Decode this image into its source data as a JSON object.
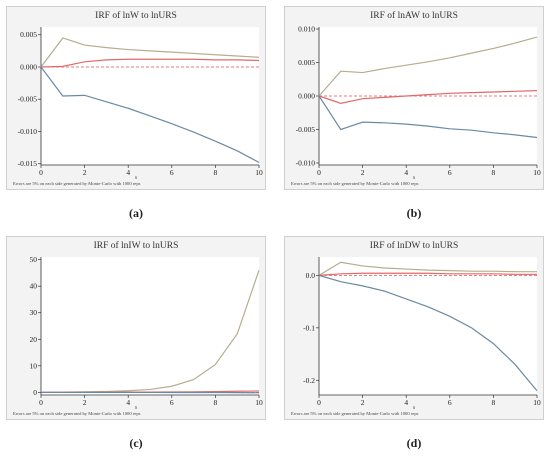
{
  "note": "Errors are 5% on each side generated by Monte-Carlo with 1000 reps",
  "xlabel": "s",
  "colors": {
    "upper": "#b4ad8e",
    "irf": "#e06a6a",
    "lower": "#6b8aa2",
    "zero": "#e05050",
    "bg": "#f3f3f3"
  },
  "captions": [
    "(a)",
    "(b)",
    "(c)",
    "(d)"
  ],
  "chart_data": [
    {
      "type": "line",
      "title": "IRF of lnW to lnURS",
      "x": [
        0,
        1,
        2,
        3,
        4,
        5,
        6,
        7,
        8,
        9,
        10
      ],
      "xticks": [
        0,
        2,
        4,
        6,
        8,
        10
      ],
      "yticks": [
        0.005,
        0.0,
        -0.005,
        -0.01,
        -0.015
      ],
      "ytick_labels": [
        "0.005",
        "0.000",
        "-0.005",
        "-0.010",
        "-0.015"
      ],
      "ylim": [
        -0.0152,
        0.0062
      ],
      "series": [
        {
          "role": "upper",
          "values": [
            0,
            0.0045,
            0.0034,
            0.003,
            0.0027,
            0.0025,
            0.0023,
            0.0021,
            0.0019,
            0.0017,
            0.0015
          ]
        },
        {
          "role": "irf",
          "values": [
            0,
            0.0001,
            0.0008,
            0.0011,
            0.0012,
            0.0012,
            0.0012,
            0.0012,
            0.0011,
            0.0011,
            0.001
          ]
        },
        {
          "role": "lower",
          "values": [
            0,
            -0.0045,
            -0.0044,
            -0.0054,
            -0.0064,
            -0.0076,
            -0.0088,
            -0.0101,
            -0.0115,
            -0.013,
            -0.0148
          ]
        }
      ]
    },
    {
      "type": "line",
      "title": "IRF of lnAW to lnURS",
      "x": [
        0,
        1,
        2,
        3,
        4,
        5,
        6,
        7,
        8,
        9,
        10
      ],
      "xticks": [
        0,
        2,
        4,
        6,
        8,
        10
      ],
      "yticks": [
        0.01,
        0.005,
        0.0,
        -0.005,
        -0.01
      ],
      "ytick_labels": [
        "0.010",
        "0.005",
        "0.000",
        "-0.005",
        "-0.010"
      ],
      "ylim": [
        -0.0103,
        0.0103
      ],
      "series": [
        {
          "role": "upper",
          "values": [
            0,
            0.0037,
            0.0035,
            0.0041,
            0.0046,
            0.0051,
            0.0057,
            0.0064,
            0.0071,
            0.0079,
            0.0088
          ]
        },
        {
          "role": "irf",
          "values": [
            0,
            -0.0011,
            -0.0004,
            -0.0002,
            0.0,
            0.0002,
            0.0004,
            0.0005,
            0.0006,
            0.0007,
            0.0008
          ]
        },
        {
          "role": "lower",
          "values": [
            0,
            -0.005,
            -0.0039,
            -0.004,
            -0.0042,
            -0.0045,
            -0.0049,
            -0.0051,
            -0.0055,
            -0.0058,
            -0.0062
          ]
        }
      ]
    },
    {
      "type": "line",
      "title": "IRF of lnIW to lnURS",
      "x": [
        0,
        1,
        2,
        3,
        4,
        5,
        6,
        7,
        8,
        9,
        10
      ],
      "xticks": [
        0,
        2,
        4,
        6,
        8,
        10
      ],
      "yticks": [
        50,
        40,
        30,
        20,
        10,
        0
      ],
      "ytick_labels": [
        "50",
        "40",
        "30",
        "20",
        "10",
        "0"
      ],
      "ylim": [
        -1,
        51
      ],
      "series": [
        {
          "role": "upper",
          "values": [
            0,
            0.1,
            0.2,
            0.35,
            0.6,
            1.1,
            2.3,
            4.8,
            10.5,
            22.0,
            46.0
          ]
        },
        {
          "role": "irf",
          "values": [
            0,
            0.02,
            0.03,
            0.05,
            0.07,
            0.1,
            0.15,
            0.2,
            0.3,
            0.4,
            0.5
          ]
        },
        {
          "role": "lower",
          "values": [
            0,
            0.0,
            -0.01,
            -0.02,
            -0.03,
            -0.04,
            -0.05,
            -0.06,
            -0.08,
            -0.1,
            -0.15
          ]
        }
      ]
    },
    {
      "type": "line",
      "title": "IRF of lnDW to lnURS",
      "x": [
        0,
        1,
        2,
        3,
        4,
        5,
        6,
        7,
        8,
        9,
        10
      ],
      "xticks": [
        0,
        2,
        4,
        6,
        8,
        10
      ],
      "yticks": [
        0,
        -0.1,
        -0.2
      ],
      "ytick_labels": [
        "0.0",
        "-0.1",
        "-0.2"
      ],
      "ylim": [
        -0.228,
        0.035
      ],
      "series": [
        {
          "role": "upper",
          "values": [
            0,
            0.025,
            0.018,
            0.014,
            0.012,
            0.01,
            0.009,
            0.008,
            0.008,
            0.007,
            0.007
          ]
        },
        {
          "role": "irf",
          "values": [
            0,
            0.003,
            0.004,
            0.004,
            0.004,
            0.004,
            0.003,
            0.003,
            0.003,
            0.002,
            0.002
          ]
        },
        {
          "role": "lower",
          "values": [
            0,
            -0.012,
            -0.02,
            -0.03,
            -0.045,
            -0.06,
            -0.078,
            -0.1,
            -0.13,
            -0.17,
            -0.22
          ]
        }
      ]
    }
  ]
}
